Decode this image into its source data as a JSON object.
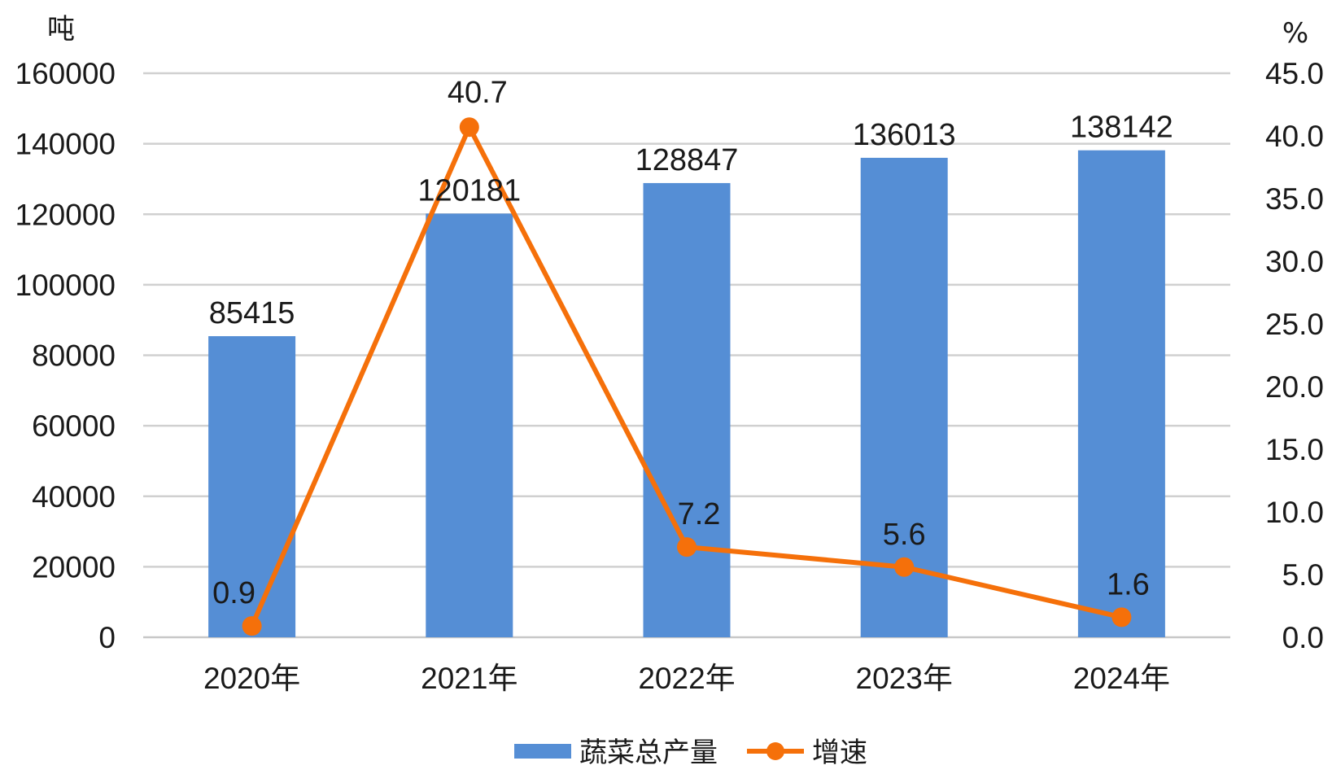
{
  "chart_data": {
    "type": "bar",
    "categories": [
      "2020年",
      "2021年",
      "2022年",
      "2023年",
      "2024年"
    ],
    "series": [
      {
        "name": "蔬菜总产量",
        "type": "bar",
        "axis": "left",
        "color": "#558ed5",
        "values": [
          85415,
          120181,
          128847,
          136013,
          138142
        ],
        "labels": [
          "85415",
          "120181",
          "128847",
          "136013",
          "138142"
        ]
      },
      {
        "name": "增速",
        "type": "line",
        "axis": "right",
        "color": "#f5700a",
        "values": [
          0.9,
          40.7,
          7.2,
          5.6,
          1.6
        ],
        "labels": [
          "0.9",
          "40.7",
          "7.2",
          "5.6",
          "1.6"
        ]
      }
    ],
    "ylabel": "吨",
    "y2label": "%",
    "ylim": [
      0,
      160000
    ],
    "y2lim": [
      0,
      45
    ],
    "yticks": [
      "0",
      "20000",
      "40000",
      "60000",
      "80000",
      "100000",
      "120000",
      "140000",
      "160000"
    ],
    "y2ticks": [
      "0.0",
      "5.0",
      "10.0",
      "15.0",
      "20.0",
      "25.0",
      "30.0",
      "35.0",
      "40.0",
      "45.0"
    ],
    "grid": true,
    "legend_position": "bottom"
  }
}
